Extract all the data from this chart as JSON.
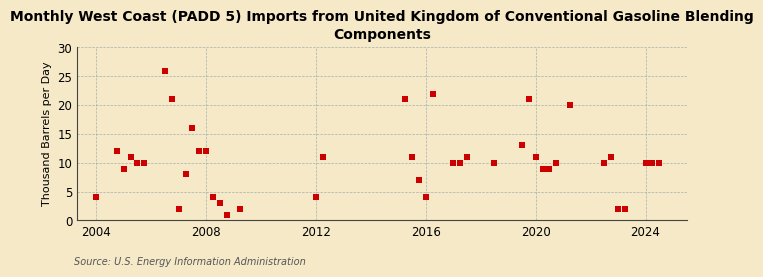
{
  "title": "Monthly West Coast (PADD 5) Imports from United Kingdom of Conventional Gasoline Blending\nComponents",
  "ylabel": "Thousand Barrels per Day",
  "source": "Source: U.S. Energy Information Administration",
  "background_color": "#f5e9c8",
  "plot_bg_color": "#f5e9c8",
  "marker_color": "#cc0000",
  "marker": "s",
  "marker_size": 18,
  "xlim": [
    2003.3,
    2025.5
  ],
  "ylim": [
    0,
    30
  ],
  "yticks": [
    0,
    5,
    10,
    15,
    20,
    25,
    30
  ],
  "xticks": [
    2004,
    2008,
    2012,
    2016,
    2020,
    2024
  ],
  "grid_color": "#8899aa",
  "data_x": [
    2004.0,
    2004.75,
    2005.0,
    2005.25,
    2005.5,
    2005.75,
    2006.5,
    2006.75,
    2007.0,
    2007.25,
    2007.5,
    2007.75,
    2008.0,
    2008.25,
    2008.5,
    2008.75,
    2009.25,
    2012.0,
    2012.25,
    2015.25,
    2015.5,
    2015.75,
    2016.0,
    2016.25,
    2017.0,
    2017.25,
    2017.5,
    2018.5,
    2019.5,
    2019.75,
    2020.0,
    2020.25,
    2020.5,
    2020.75,
    2021.25,
    2022.5,
    2022.75,
    2023.0,
    2023.25,
    2024.0,
    2024.25,
    2024.5
  ],
  "data_y": [
    4,
    12,
    9,
    11,
    10,
    10,
    26,
    21,
    2,
    8,
    16,
    12,
    12,
    4,
    3,
    1,
    2,
    4,
    11,
    21,
    11,
    7,
    4,
    22,
    10,
    10,
    11,
    10,
    13,
    21,
    11,
    9,
    9,
    10,
    20,
    10,
    11,
    2,
    2,
    10,
    10,
    10
  ],
  "title_fontsize": 10,
  "label_fontsize": 8,
  "tick_fontsize": 8.5,
  "source_fontsize": 7
}
